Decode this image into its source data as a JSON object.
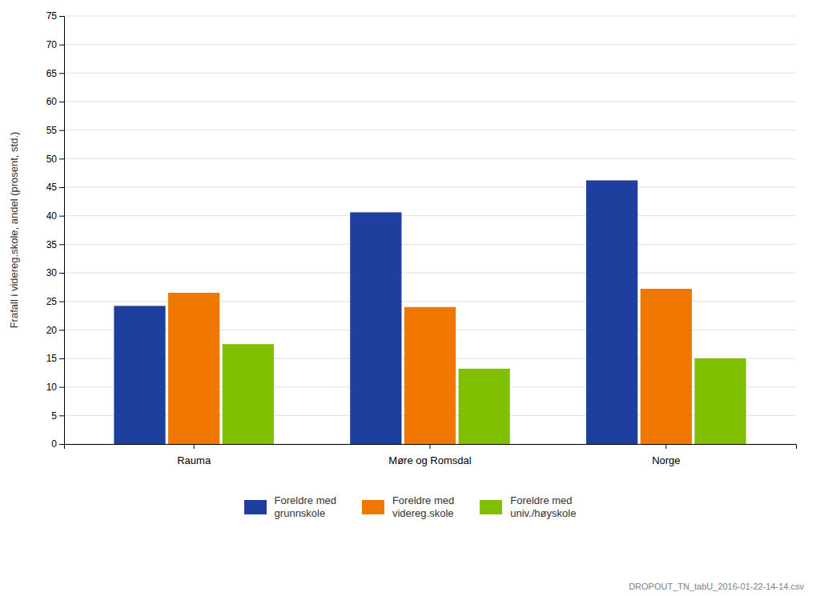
{
  "chart_data": {
    "type": "bar",
    "categories": [
      "Rauma",
      "Møre og Romsdal",
      "Norge"
    ],
    "series": [
      {
        "name": "Foreldre med\ngrunnskole",
        "color": "#1f3f9e",
        "values": [
          24.2,
          40.6,
          46.2
        ]
      },
      {
        "name": "Foreldre med\nvidereg.skole",
        "color": "#f07800",
        "values": [
          26.5,
          24.0,
          27.2
        ]
      },
      {
        "name": "Foreldre med\nuniv./høyskole",
        "color": "#80c000",
        "values": [
          17.5,
          13.2,
          15.0
        ]
      }
    ],
    "ylabel": "Frafall i videreg.skole, andel (prosent, std.)",
    "ylim": [
      0,
      75
    ],
    "yticks": [
      0,
      5,
      10,
      15,
      20,
      25,
      30,
      35,
      40,
      45,
      50,
      55,
      60,
      65,
      70,
      75
    ],
    "grid": true,
    "legend": "bottom",
    "footnote": "DROPOUT_TN_tabU_2016-01-22-14-14.csv"
  }
}
